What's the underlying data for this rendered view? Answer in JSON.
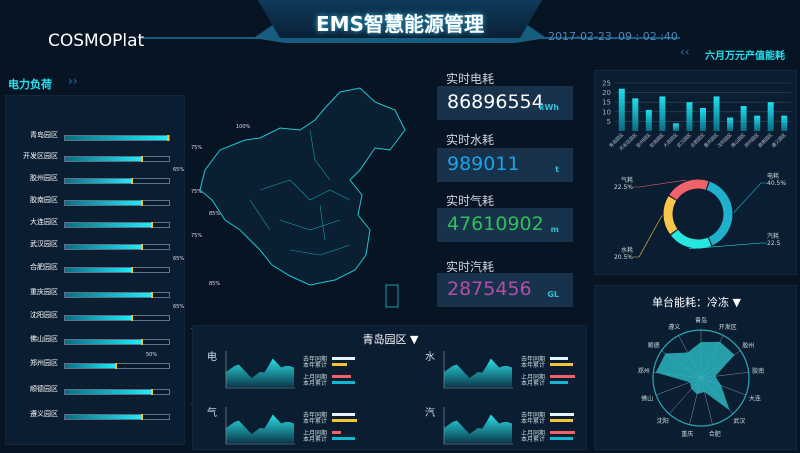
{
  "header": {
    "title": "EMS智慧能源管理",
    "brand": "COSMOPlat",
    "date": "2017-02-23",
    "time": "09 : 02 :40"
  },
  "power_load": {
    "title": "电力负荷",
    "items": [
      {
        "label": "青岛园区",
        "percent": 100,
        "pct_label": "100%"
      },
      {
        "label": "开发区园区",
        "percent": 75,
        "pct_label": "75%"
      },
      {
        "label": "胶州园区",
        "percent": 65,
        "pct_label": "65%"
      },
      {
        "label": "胶南园区",
        "percent": 75,
        "pct_label": "75%"
      },
      {
        "label": "大连园区",
        "percent": 85,
        "pct_label": "85%"
      },
      {
        "label": "武汉园区",
        "percent": 75,
        "pct_label": "75%"
      },
      {
        "label": "合肥园区",
        "percent": 65,
        "pct_label": "65%"
      },
      {
        "label": "重庆园区",
        "percent": 85,
        "pct_label": "85%"
      },
      {
        "label": "沈阳园区",
        "percent": 65,
        "pct_label": "65%"
      },
      {
        "label": "佛山园区",
        "percent": 75,
        "pct_label": "75%"
      },
      {
        "label": "郑州园区",
        "percent": 50,
        "pct_label": "50%"
      },
      {
        "label": "顺德园区",
        "percent": 85,
        "pct_label": "85%"
      },
      {
        "label": "遵义园区",
        "percent": 75,
        "pct_label": "75%"
      }
    ]
  },
  "realtime": [
    {
      "label": "实时电耗",
      "value": "86896554",
      "unit": "kWh",
      "color": "#ffffff"
    },
    {
      "label": "实时水耗",
      "value": "989011",
      "unit": "t",
      "color": "#1aa3e8"
    },
    {
      "label": "实时气耗",
      "value": "47610902",
      "unit": "m",
      "color": "#2fbf5a"
    },
    {
      "label": "实时汽耗",
      "value": "2875456",
      "unit": "GL",
      "color": "#b24ea9"
    }
  ],
  "park_panel": {
    "selected": "青岛园区",
    "charts": [
      {
        "label": "电",
        "legend": [
          0.9,
          0.6,
          0.75,
          0.9
        ]
      },
      {
        "label": "水",
        "legend": [
          0.7,
          0.9,
          1.0,
          0.7
        ]
      },
      {
        "label": "气",
        "legend": [
          0.9,
          1.0,
          0.35,
          0.9
        ]
      },
      {
        "label": "汽",
        "legend": [
          0.95,
          0.9,
          1.0,
          0.9
        ]
      }
    ],
    "legend_labels": [
      "去年同期",
      "本年累计",
      "上月同期",
      "本月累计"
    ],
    "legend_colors": [
      "#e8f4ff",
      "#f4c331",
      "#f0626a",
      "#13b8d0"
    ],
    "series": [
      5,
      6,
      7,
      7.5,
      6,
      4.5,
      3,
      4,
      5,
      4.8,
      7,
      9.5,
      8,
      6.5,
      7,
      7,
      6.5
    ]
  },
  "chart_data": [
    {
      "type": "bar",
      "title": "六月万元产值能耗",
      "categories": [
        "青岛园区",
        "开发区园区",
        "胶州园区",
        "胶南园区",
        "大连园区",
        "武汉园区",
        "合肥园区",
        "重庆园区",
        "沈阳园区",
        "佛山园区",
        "郑州园区",
        "顺德园区",
        "遵义园区"
      ],
      "values": [
        22,
        17,
        11,
        18,
        4,
        15,
        12,
        18,
        7,
        13,
        8,
        15,
        8
      ],
      "yticks": [
        5,
        10,
        15,
        20,
        25
      ],
      "ylim": [
        0,
        25
      ],
      "grid": true,
      "color": "#17c6d8"
    },
    {
      "type": "pie",
      "slices": [
        {
          "name": "电耗",
          "label": "40.5%",
          "value": 40.5,
          "color": "#1fb1cc"
        },
        {
          "name": "汽耗",
          "label": "22.5",
          "value": 22.5,
          "color": "#27e8e0"
        },
        {
          "name": "水耗",
          "label": "20.5%",
          "value": 20.5,
          "color": "#f7c64a"
        },
        {
          "name": "气耗",
          "label": "22.5%",
          "value": 22.5,
          "color": "#f0626a"
        }
      ]
    },
    {
      "type": "radar",
      "title": "单台能耗：冷冻",
      "axes": [
        "青岛",
        "开发区",
        "胶州",
        "胶南",
        "大连",
        "武汉",
        "合肥",
        "重庆",
        "沈阳",
        "佛山",
        "郑州",
        "顺德",
        "遵义"
      ],
      "values": [
        0.75,
        0.85,
        0.85,
        0.3,
        0.45,
        0.9,
        0.3,
        0.35,
        0.3,
        0.25,
        0.95,
        0.9,
        0.6
      ],
      "color": "#2bb5c0"
    }
  ]
}
